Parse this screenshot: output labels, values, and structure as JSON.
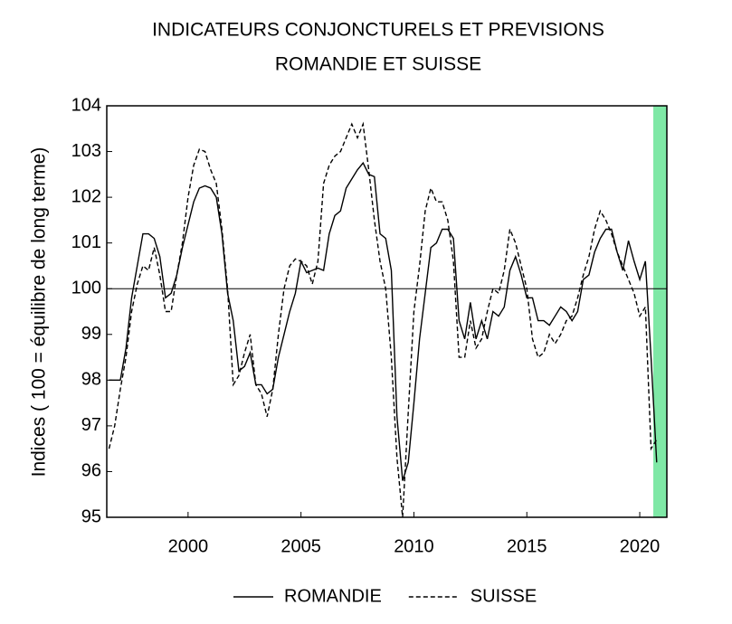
{
  "chart_data": {
    "type": "line",
    "title": "INDICATEURS CONJONCTURELS ET PREVISIONS",
    "subtitle": "ROMANDIE ET SUISSE",
    "y_label": "Indices ( 100 = équilibre de long terme)",
    "x": [
      1996.5,
      1996.75,
      1997,
      1997.25,
      1997.5,
      1997.75,
      1998,
      1998.25,
      1998.5,
      1998.75,
      1999,
      1999.25,
      1999.5,
      1999.75,
      2000,
      2000.25,
      2000.5,
      2000.75,
      2001,
      2001.25,
      2001.5,
      2001.75,
      2002,
      2002.25,
      2002.5,
      2002.75,
      2003,
      2003.25,
      2003.5,
      2003.75,
      2004,
      2004.25,
      2004.5,
      2004.75,
      2005,
      2005.25,
      2005.5,
      2005.75,
      2006,
      2006.25,
      2006.5,
      2006.75,
      2007,
      2007.25,
      2007.5,
      2007.75,
      2008,
      2008.25,
      2008.5,
      2008.75,
      2009,
      2009.25,
      2009.5,
      2009.75,
      2010,
      2010.25,
      2010.5,
      2010.75,
      2011,
      2011.25,
      2011.5,
      2011.75,
      2012,
      2012.25,
      2012.5,
      2012.75,
      2013,
      2013.25,
      2013.5,
      2013.75,
      2014,
      2014.25,
      2014.5,
      2014.75,
      2015,
      2015.25,
      2015.5,
      2015.75,
      2016,
      2016.25,
      2016.5,
      2016.75,
      2017,
      2017.25,
      2017.5,
      2017.75,
      2018,
      2018.25,
      2018.5,
      2018.75,
      2019,
      2019.25,
      2019.5,
      2019.75,
      2020,
      2020.25,
      2020.5,
      2020.75
    ],
    "series": [
      {
        "name": "ROMANDIE",
        "color": "#000000",
        "dash": "solid",
        "values": [
          98.0,
          98.0,
          98.0,
          98.7,
          99.8,
          100.5,
          101.2,
          101.2,
          101.1,
          100.7,
          99.8,
          99.9,
          100.3,
          100.9,
          101.4,
          101.9,
          102.2,
          102.25,
          102.2,
          102.0,
          101.2,
          99.9,
          99.3,
          98.2,
          98.3,
          98.6,
          97.9,
          97.9,
          97.7,
          97.8,
          98.5,
          99.0,
          99.5,
          99.9,
          100.6,
          100.35,
          100.4,
          100.45,
          100.4,
          101.2,
          101.6,
          101.7,
          102.2,
          102.4,
          102.6,
          102.75,
          102.5,
          102.45,
          101.2,
          101.1,
          100.4,
          97.2,
          95.8,
          96.2,
          97.5,
          98.9,
          99.9,
          100.9,
          101.0,
          101.3,
          101.3,
          101.1,
          99.3,
          98.9,
          99.7,
          98.9,
          99.3,
          98.9,
          99.5,
          99.4,
          99.6,
          100.4,
          100.7,
          100.3,
          99.8,
          99.8,
          99.3,
          99.3,
          99.2,
          99.4,
          99.6,
          99.5,
          99.3,
          99.5,
          100.2,
          100.3,
          100.8,
          101.1,
          101.3,
          101.3,
          100.8,
          100.4,
          101.05,
          100.6,
          100.2,
          100.6,
          98.5,
          96.2
        ]
      },
      {
        "name": "SUISSE",
        "color": "#000000",
        "dash": "dashed",
        "values": [
          96.5,
          97.0,
          97.8,
          98.5,
          99.5,
          100.1,
          100.5,
          100.4,
          100.9,
          100.3,
          99.5,
          99.5,
          100.3,
          101.0,
          102.0,
          102.7,
          103.05,
          103.0,
          102.6,
          102.3,
          101.3,
          100.0,
          97.9,
          98.1,
          98.6,
          99.0,
          97.9,
          97.7,
          97.2,
          97.8,
          99.0,
          100.0,
          100.5,
          100.65,
          100.6,
          100.5,
          100.1,
          100.6,
          102.3,
          102.7,
          102.9,
          103.0,
          103.3,
          103.6,
          103.3,
          103.6,
          102.6,
          101.5,
          100.6,
          100.0,
          98.5,
          96.3,
          95.0,
          97.3,
          99.5,
          100.5,
          101.7,
          102.2,
          101.9,
          101.9,
          101.5,
          100.6,
          98.5,
          98.5,
          99.3,
          98.7,
          98.9,
          99.5,
          100.0,
          99.9,
          100.4,
          101.3,
          101.0,
          100.5,
          100.0,
          98.9,
          98.5,
          98.6,
          99.0,
          98.8,
          99.0,
          99.3,
          99.4,
          99.8,
          100.3,
          100.7,
          101.3,
          101.7,
          101.5,
          101.2,
          100.8,
          100.5,
          100.2,
          99.9,
          99.4,
          99.6,
          96.5,
          96.7
        ]
      }
    ],
    "xlim": [
      1996.4,
      2021.2
    ],
    "xticks": [
      2000,
      2005,
      2010,
      2015,
      2020
    ],
    "ylim": [
      95,
      104
    ],
    "yticks": [
      95,
      96,
      97,
      98,
      99,
      100,
      101,
      102,
      103,
      104
    ],
    "reference_line": 100,
    "shaded_region": {
      "x": [
        2020.6,
        2021.2
      ],
      "color": "#7fe8a6"
    },
    "legend": "bottom"
  }
}
